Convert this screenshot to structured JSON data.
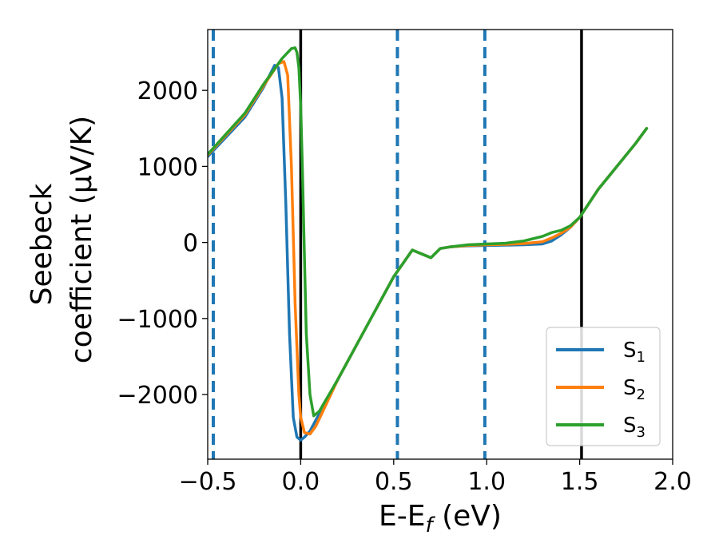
{
  "chart_data": {
    "type": "line",
    "xlabel": "E-E",
    "xlabel_sub": "f",
    "xlabel_unit": " (eV)",
    "ylabel_line1": "Seebeck",
    "ylabel_line2": "coefficient  (μV/K)",
    "xlim": [
      -0.5,
      2.0
    ],
    "ylim": [
      -2850,
      2800
    ],
    "xticks": [
      -0.5,
      0.0,
      0.5,
      1.0,
      1.5,
      2.0
    ],
    "xtick_labels": [
      "−0.5",
      "0.0",
      "0.5",
      "1.0",
      "1.5",
      "2.0"
    ],
    "yticks": [
      -2000,
      -1000,
      0,
      1000,
      2000
    ],
    "ytick_labels": [
      "−2000",
      "−1000",
      "0",
      "1000",
      "2000"
    ],
    "grid": false,
    "legend_position": "bottom-right",
    "vertical_lines": [
      {
        "x": -0.47,
        "style": "dashed",
        "color": "#1f77b4"
      },
      {
        "x": 0.0,
        "style": "solid",
        "color": "#000000"
      },
      {
        "x": 0.52,
        "style": "dashed",
        "color": "#1f77b4"
      },
      {
        "x": 0.99,
        "style": "dashed",
        "color": "#1f77b4"
      },
      {
        "x": 1.51,
        "style": "solid",
        "color": "#000000"
      }
    ],
    "series": [
      {
        "name": "S",
        "sub": "1",
        "color": "#1f77b4",
        "x": [
          -0.5,
          -0.3,
          -0.2,
          -0.14,
          -0.12,
          -0.1,
          -0.08,
          -0.06,
          -0.04,
          -0.02,
          0.0,
          0.02,
          0.05,
          0.1,
          0.2,
          0.3,
          0.4,
          0.5,
          0.6,
          0.7,
          0.75,
          0.8,
          0.85,
          0.9,
          1.0,
          1.1,
          1.2,
          1.3,
          1.35,
          1.4,
          1.45,
          1.5,
          1.6,
          1.7,
          1.8,
          1.86
        ],
        "y": [
          1130,
          1650,
          2040,
          2330,
          2300,
          1900,
          500,
          -1200,
          -2300,
          -2560,
          -2600,
          -2560,
          -2480,
          -2250,
          -1800,
          -1350,
          -900,
          -450,
          -100,
          -200,
          -80,
          -60,
          -50,
          -45,
          -40,
          -35,
          -30,
          -20,
          20,
          100,
          200,
          330,
          700,
          1000,
          1300,
          1500
        ]
      },
      {
        "name": "S",
        "sub": "2",
        "color": "#ff7f0e",
        "x": [
          -0.5,
          -0.3,
          -0.2,
          -0.12,
          -0.09,
          -0.07,
          -0.05,
          -0.03,
          -0.01,
          0.0,
          0.02,
          0.05,
          0.08,
          0.1,
          0.2,
          0.3,
          0.4,
          0.5,
          0.6,
          0.7,
          0.75,
          0.8,
          0.85,
          0.9,
          1.0,
          1.1,
          1.2,
          1.3,
          1.35,
          1.4,
          1.45,
          1.5,
          1.6,
          1.7,
          1.8,
          1.86
        ],
        "y": [
          1150,
          1680,
          2060,
          2350,
          2380,
          2200,
          1000,
          -800,
          -2000,
          -2300,
          -2500,
          -2520,
          -2420,
          -2320,
          -1800,
          -1350,
          -900,
          -450,
          -100,
          -200,
          -80,
          -60,
          -50,
          -40,
          -30,
          -25,
          -15,
          10,
          60,
          120,
          200,
          330,
          700,
          1000,
          1300,
          1500
        ]
      },
      {
        "name": "S",
        "sub": "3",
        "color": "#2ca02c",
        "x": [
          -0.5,
          -0.3,
          -0.2,
          -0.1,
          -0.05,
          -0.03,
          -0.02,
          -0.01,
          0.0,
          0.01,
          0.02,
          0.03,
          0.05,
          0.07,
          0.1,
          0.2,
          0.3,
          0.4,
          0.5,
          0.6,
          0.7,
          0.75,
          0.8,
          0.85,
          0.9,
          1.0,
          1.1,
          1.2,
          1.3,
          1.35,
          1.4,
          1.45,
          1.5,
          1.6,
          1.7,
          1.8,
          1.86
        ],
        "y": [
          1160,
          1700,
          2080,
          2420,
          2550,
          2560,
          2500,
          2300,
          1800,
          900,
          -200,
          -1200,
          -2000,
          -2280,
          -2220,
          -1800,
          -1350,
          -900,
          -450,
          -100,
          -200,
          -80,
          -60,
          -45,
          -30,
          -20,
          -10,
          20,
          80,
          130,
          160,
          220,
          330,
          700,
          1000,
          1300,
          1500
        ]
      }
    ]
  }
}
